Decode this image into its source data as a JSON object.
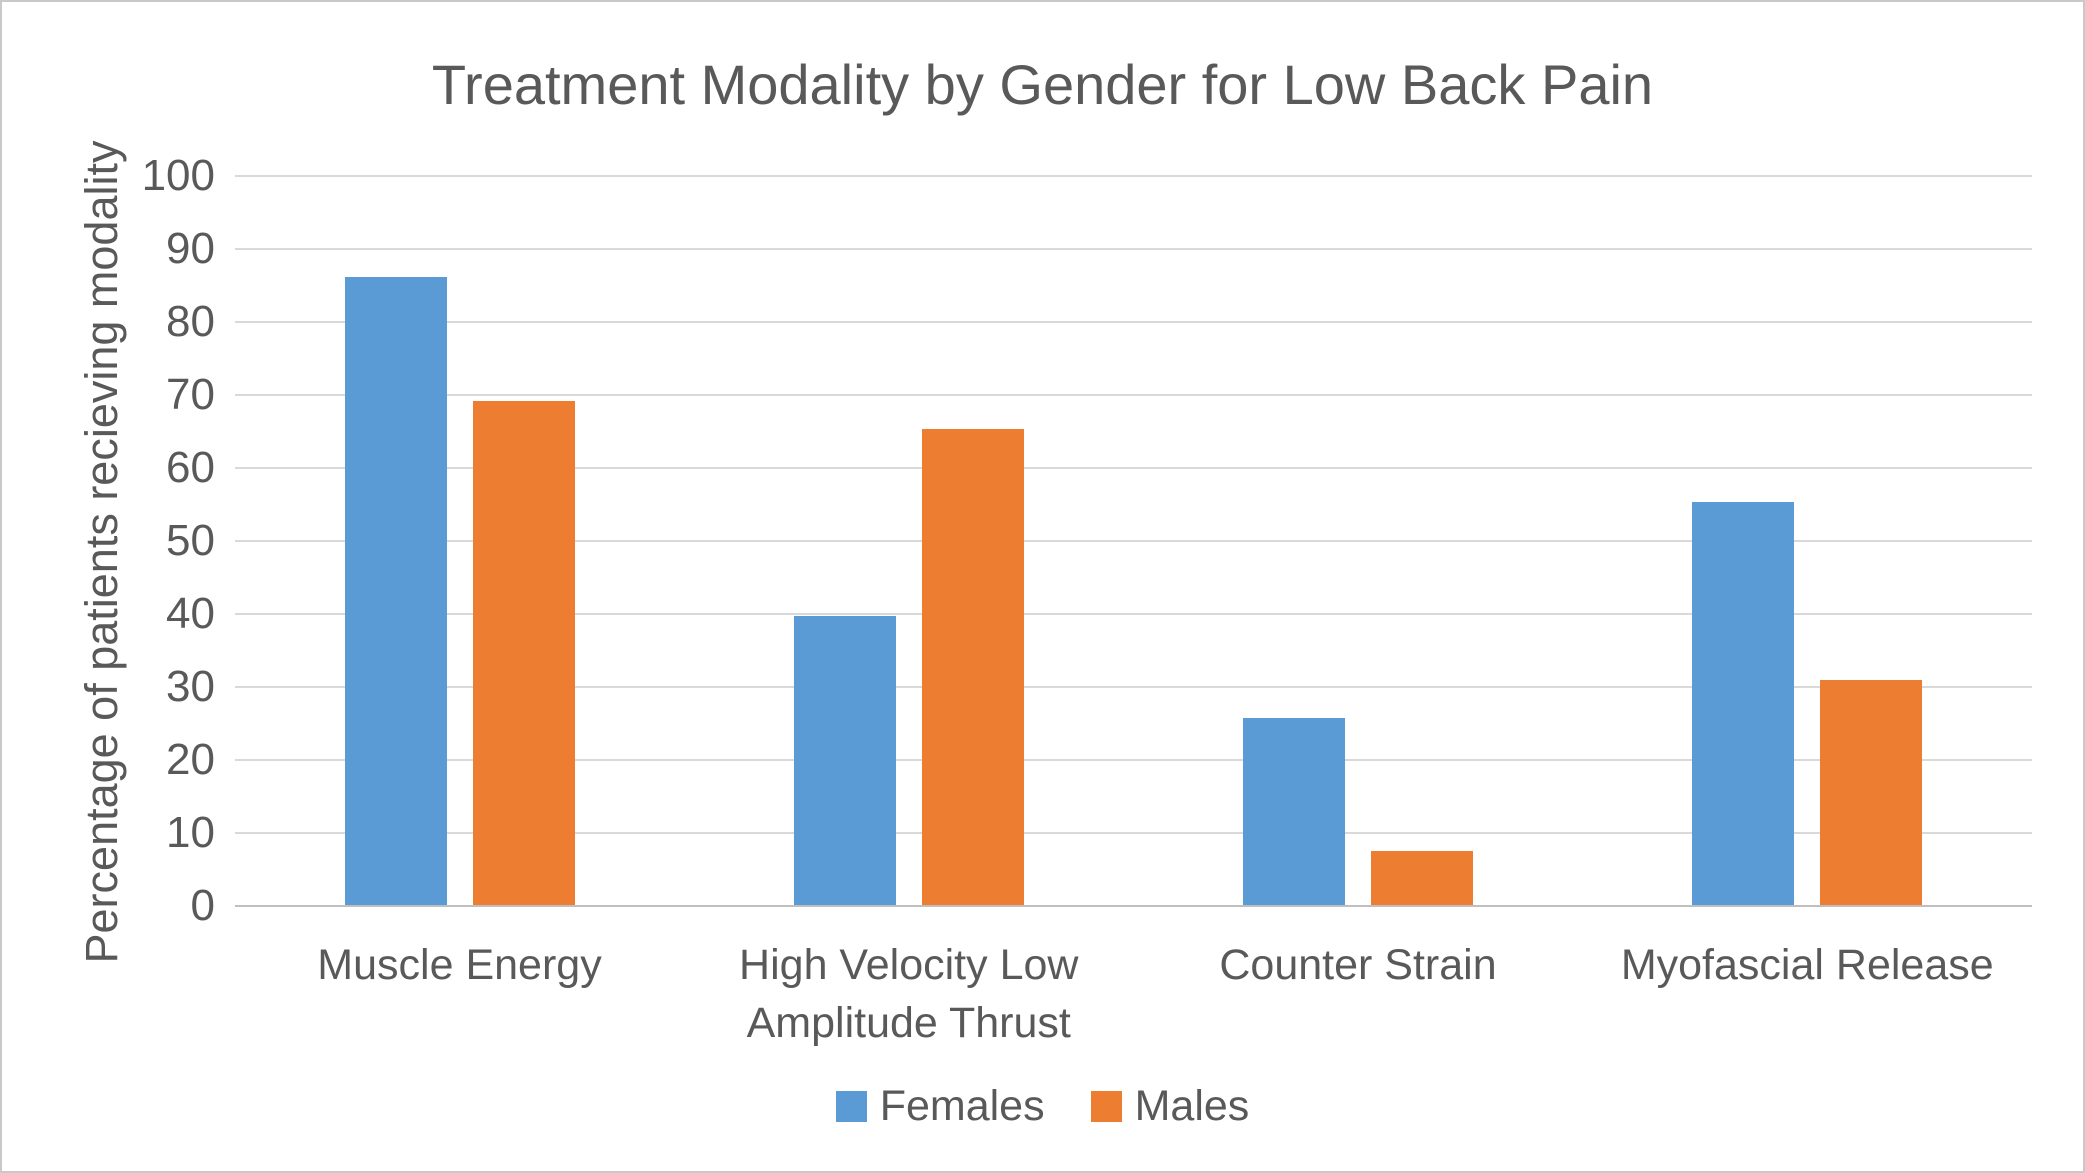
{
  "title": "Treatment Modality by Gender for Low Back Pain",
  "colors": {
    "females": "#5B9BD5",
    "males": "#ED7D31",
    "text": "#595959",
    "gridline": "#D9D9D9",
    "axis_line": "#BFBFBF",
    "background": "#FFFFFF",
    "border": "#C9C9C9"
  },
  "chart_data": {
    "type": "bar",
    "title": "Treatment Modality by Gender for Low Back Pain",
    "categories": [
      "Muscle Energy",
      "High Velocity Low Amplitude Thrust",
      "Counter Strain",
      "Myofascial Release"
    ],
    "series": [
      {
        "name": "Females",
        "color": "#5B9BD5",
        "values": [
          86.2,
          39.7,
          25.8,
          55.3
        ]
      },
      {
        "name": "Males",
        "color": "#ED7D31",
        "values": [
          69.2,
          65.3,
          7.6,
          30.9
        ]
      }
    ],
    "xlabel": "",
    "ylabel": "Percentage of patients recieving modality",
    "ylim": [
      0,
      100
    ],
    "ytick_step": 10,
    "yticks": [
      0,
      10,
      20,
      30,
      40,
      50,
      60,
      70,
      80,
      90,
      100
    ],
    "grid": "horizontal",
    "legend_position": "bottom"
  }
}
